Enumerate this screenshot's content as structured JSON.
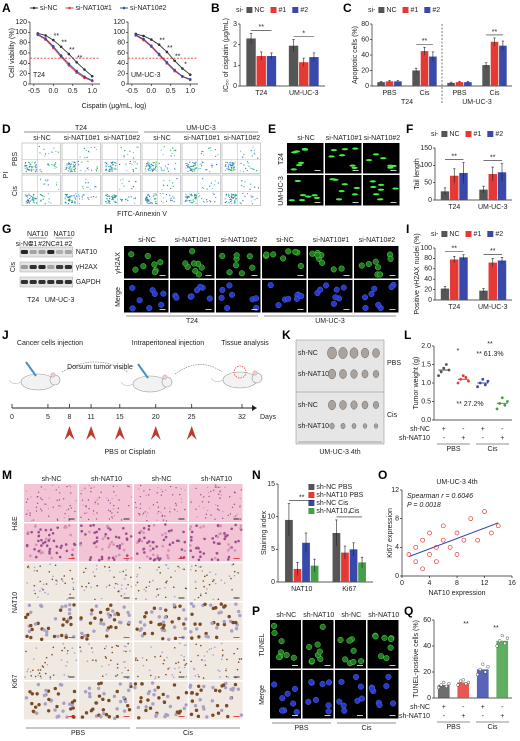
{
  "panels": {
    "A": {
      "letter": "A",
      "type": "line",
      "ylabel": "Cell viability (%)",
      "xlabel": "Cispatin (μg/mL, log)",
      "x": [
        -0.4,
        -0.2,
        0,
        0.2,
        0.4,
        0.6,
        0.8,
        1.0
      ],
      "xlim": [
        -0.6,
        1.2
      ],
      "xticks": [
        -0.5,
        {
          "value": 0,
          "label": "0.0"
        },
        0.5,
        {
          "value": 1,
          "label": "1.0"
        }
      ],
      "ylim": [
        0,
        120
      ],
      "yticks": [
        0,
        20,
        40,
        60,
        80,
        100,
        120
      ],
      "reference": 50,
      "series": [
        {
          "name": "si-NC",
          "color": "#333333"
        },
        {
          "name": "si-NAT10#1",
          "color": "#e53935"
        },
        {
          "name": "si-NAT10#2",
          "color": "#3949ab"
        }
      ],
      "charts": [
        {
          "name": "T24",
          "series": [
            {
              "values": [
                98,
                94,
                85,
                72,
                58,
                42,
                28,
                15
              ]
            },
            {
              "values": [
                95,
                86,
                70,
                52,
                36,
                22,
                12,
                6
              ]
            },
            {
              "values": [
                96,
                88,
                73,
                55,
                39,
                25,
                14,
                7
              ]
            }
          ],
          "stars": [
            null,
            null,
            "**",
            "**",
            "**",
            "**",
            null,
            null
          ]
        },
        {
          "name": "UM-UC-3",
          "series": [
            {
              "values": [
                97,
                93,
                86,
                76,
                62,
                45,
                30,
                18
              ]
            },
            {
              "values": [
                94,
                85,
                72,
                56,
                40,
                25,
                14,
                8
              ]
            },
            {
              "values": [
                95,
                87,
                74,
                58,
                42,
                27,
                15,
                9
              ]
            }
          ],
          "stars": [
            null,
            null,
            null,
            "**",
            "**",
            "**",
            "*",
            null
          ]
        }
      ]
    },
    "B": {
      "letter": "B",
      "type": "bar",
      "ylabel": "IC₅₀ of cisplatin (μg/mL)",
      "legend_title": "si-",
      "legend": "top",
      "categories": [
        "T24",
        "UM-UC-3"
      ],
      "ylim": [
        0,
        3
      ],
      "yticks": [
        0,
        1,
        2,
        3
      ],
      "stars": [
        "**",
        "*"
      ],
      "series": [
        {
          "name": "NC",
          "color": "#555555",
          "values": [
            2.3,
            1.95
          ],
          "errors": [
            0.25,
            0.3
          ]
        },
        {
          "name": "#1",
          "color": "#e53935",
          "values": [
            1.45,
            1.15
          ],
          "errors": [
            0.2,
            0.2
          ]
        },
        {
          "name": "#2",
          "color": "#3949ab",
          "values": [
            1.45,
            1.4
          ],
          "errors": [
            0.15,
            0.2
          ]
        }
      ]
    },
    "C": {
      "letter": "C",
      "type": "bar",
      "ylabel": "Apoptotic cells (%)",
      "legend_title": "si-",
      "legend": "top",
      "categories": [
        "PBS",
        "Cis",
        "PBS",
        "Cis"
      ],
      "groups": [
        "T24",
        "UM-UC-3"
      ],
      "ylim": [
        0,
        80
      ],
      "yticks": [
        0,
        20,
        40,
        60,
        80
      ],
      "stars": [
        null,
        "**",
        null,
        "**"
      ],
      "series": [
        {
          "name": "NC",
          "color": "#555555",
          "values": [
            5,
            20,
            4,
            27
          ],
          "errors": [
            1,
            3,
            1,
            3
          ]
        },
        {
          "name": "#1",
          "color": "#e53935",
          "values": [
            6,
            45,
            5,
            57
          ],
          "errors": [
            1,
            5,
            1,
            5
          ]
        },
        {
          "name": "#2",
          "color": "#3949ab",
          "values": [
            6,
            38,
            5,
            52
          ],
          "errors": [
            1,
            6,
            1,
            6
          ]
        }
      ]
    },
    "D": {
      "letter": "D",
      "type": "images",
      "columns": [
        "si-NC",
        "si-NAT10#1",
        "si-NAT10#2",
        "si-NC",
        "si-NAT10#1",
        "si-NAT10#2"
      ],
      "groups": [
        "T24",
        "UM-UC-3"
      ],
      "rows": [
        "PBS",
        "Cis"
      ],
      "row_styles": [
        "flow",
        "flow"
      ],
      "ylabel": "PI",
      "xlabel": "FITC-Annexin V"
    },
    "E": {
      "letter": "E",
      "type": "images",
      "columns": [
        "si-NC",
        "si-NAT10#1",
        "si-NAT10#2"
      ],
      "rows": [
        "T24",
        "UM-UC-3"
      ],
      "row_styles": [
        "comet",
        "comet"
      ]
    },
    "F": {
      "letter": "F",
      "type": "bar",
      "ylabel": "Tail length",
      "legend_title": "si-",
      "legend": "top",
      "categories": [
        "T24",
        "UM-UC-3"
      ],
      "ylim": [
        0,
        150
      ],
      "yticks": [
        0,
        50,
        100,
        150
      ],
      "stars": [
        "**",
        "**"
      ],
      "series": [
        {
          "name": "NC",
          "color": "#555555",
          "values": [
            25,
            30
          ],
          "errors": [
            10,
            10
          ]
        },
        {
          "name": "#1",
          "color": "#e53935",
          "values": [
            70,
            75
          ],
          "errors": [
            20,
            20
          ]
        },
        {
          "name": "#2",
          "color": "#3949ab",
          "values": [
            78,
            80
          ],
          "errors": [
            30,
            25
          ]
        }
      ]
    },
    "G": {
      "letter": "G",
      "type": "blot",
      "header": [
        "NAT10",
        "NAT10"
      ],
      "columns": [
        "si-NC",
        "#1",
        "#2",
        "NC",
        "#1",
        "#2"
      ],
      "bands": [
        "NAT10",
        "γH2AX",
        "GAPDH"
      ],
      "side": "Cis",
      "groups": [
        "T24",
        "UM-UC-3"
      ]
    },
    "H": {
      "letter": "H",
      "type": "images",
      "columns": [
        "si-NC",
        "si-NAT10#1",
        "si-NAT10#2",
        "si-NC",
        "si-NAT10#1",
        "si-NAT10#2"
      ],
      "groups": [
        "T24",
        "UM-UC-3"
      ],
      "rows": [
        "γH2AX",
        "Merge"
      ],
      "row_styles": [
        "green",
        "blue"
      ]
    },
    "I": {
      "letter": "I",
      "type": "bar",
      "ylabel": "Positive γH2AX nuclei (%)",
      "legend_title": "si-",
      "legend": "top",
      "categories": [
        "T24",
        "UM-UC-3"
      ],
      "ylim": [
        0,
        100
      ],
      "yticks": [
        0,
        20,
        40,
        60,
        80,
        100
      ],
      "stars": [
        "**",
        "**"
      ],
      "series": [
        {
          "name": "NC",
          "color": "#555555",
          "values": [
            22,
            18
          ],
          "errors": [
            4,
            4
          ]
        },
        {
          "name": "#1",
          "color": "#e53935",
          "values": [
            78,
            72
          ],
          "errors": [
            6,
            8
          ]
        },
        {
          "name": "#2",
          "color": "#3949ab",
          "values": [
            82,
            76
          ],
          "errors": [
            5,
            6
          ]
        }
      ]
    },
    "J": {
      "letter": "J",
      "type": "timeline",
      "steps": [
        "Cancer cells injection",
        "Dorsum tumor visible",
        "Intraperitoneal injection",
        "Tissue analysis"
      ],
      "days": [
        0,
        5,
        8,
        11,
        15,
        20,
        25,
        32
      ],
      "unit": "Days",
      "treatment": "PBS or Cisplatin",
      "treatment_days": [
        8,
        11,
        15,
        20,
        25
      ]
    },
    "K": {
      "letter": "K",
      "type": "photo",
      "rows": [
        "sh-NC",
        "sh-NAT10",
        "sh-NC",
        "sh-NAT10"
      ],
      "groups": [
        "PBS",
        "Cis"
      ],
      "caption": "UM-UC-3 4th"
    },
    "L": {
      "letter": "L",
      "type": "dots",
      "bars": false,
      "ylabel": "Tumor weight (g)",
      "ylim": [
        0,
        2
      ],
      "yticks": [
        {
          "value": 0,
          "label": "0.0"
        },
        0.5,
        {
          "value": 1,
          "label": "1.0"
        },
        1.5,
        {
          "value": 2,
          "label": "2.0"
        }
      ],
      "values": [
        1.35,
        1.1,
        1.0,
        0.45
      ],
      "colors": [
        "#555555",
        "#e53935",
        "#3949ab",
        "#43a047"
      ],
      "points": [
        [
          1.2,
          1.3,
          1.4,
          1.5,
          1.35
        ],
        [
          1.0,
          1.1,
          1.2,
          1.15,
          1.05
        ],
        [
          0.9,
          1.0,
          1.1,
          0.95,
          1.05
        ],
        [
          0.3,
          0.45,
          0.6,
          0.4,
          0.5
        ]
      ],
      "rows": [
        {
          "label": "sh-NC",
          "signs": [
            "+",
            "-",
            "+",
            "-"
          ]
        },
        {
          "label": "sh-NAT10",
          "signs": [
            "-",
            "+",
            "-",
            "+"
          ]
        }
      ],
      "groups": [
        "PBS",
        "Cis"
      ],
      "notes": [
        "*",
        "**",
        "** 61.3%",
        "** 27.2%"
      ]
    },
    "M": {
      "letter": "M",
      "type": "images",
      "columns": [
        "sh-NC",
        "sh-NAT10",
        "sh-NC",
        "sh-NAT10"
      ],
      "groups": [
        "PBS",
        "Cis"
      ],
      "rows": [
        "H&E",
        "NAT10",
        "Ki67"
      ],
      "row_styles": [
        "he",
        "ihc",
        "ihc"
      ],
      "subrows": 2
    },
    "N": {
      "letter": "N",
      "type": "bar",
      "ylabel": "Staining index",
      "legend": "inside",
      "categories": [
        "NAT10",
        "Ki67"
      ],
      "ylim": [
        0,
        15
      ],
      "yticks": [
        0,
        5,
        10,
        15
      ],
      "stars": [
        "**",
        "*"
      ],
      "series": [
        {
          "name": "sh-NC PBS",
          "color": "#555555",
          "values": [
            9.5,
            7.5
          ],
          "errors": [
            2.5,
            2
          ]
        },
        {
          "name": "sh-NAT10 PBS",
          "color": "#e53935",
          "values": [
            2,
            4.5
          ],
          "errors": [
            1,
            1
          ]
        },
        {
          "name": "sh-NC Cis",
          "color": "#3949ab",
          "values": [
            6,
            5
          ],
          "errors": [
            1.5,
            1
          ]
        },
        {
          "name": "sh-NAT10 Cis",
          "color": "#43a047",
          "values": [
            2.5,
            3
          ],
          "errors": [
            1,
            0.8
          ]
        }
      ]
    },
    "O": {
      "letter": "O",
      "type": "scatter",
      "title": "UM-UC-3 4th",
      "stats": [
        "Spearman r = 0.6046",
        "P = 0.0018"
      ],
      "xlabel": "NAT10 expression",
      "ylabel": "Ki67 expression",
      "xlim": [
        0,
        16
      ],
      "xticks": [
        0,
        4,
        8,
        12,
        16
      ],
      "ylim": [
        0,
        12
      ],
      "yticks": [
        0,
        4,
        8,
        12
      ],
      "color": "#e53935",
      "line_color": "#3949ab",
      "x": [
        1,
        2,
        2,
        3,
        3,
        4,
        4,
        5,
        5,
        6,
        6,
        7,
        8,
        8,
        9,
        10,
        11,
        12,
        13,
        14
      ],
      "y": [
        3,
        2,
        4,
        1,
        5,
        3,
        6,
        2,
        4,
        5,
        7,
        4,
        6,
        3,
        5,
        8,
        5,
        9,
        6,
        7
      ]
    },
    "P": {
      "letter": "P",
      "type": "images",
      "columns": [
        "sh-NC",
        "sh-NAT10",
        "sh-NC",
        "sh-NAT10"
      ],
      "groups": [
        "PBS",
        "Cis"
      ],
      "rows": [
        "TUNEL",
        "Merge"
      ],
      "row_styles": [
        "green",
        "blue"
      ]
    },
    "Q": {
      "letter": "Q",
      "type": "dots",
      "bars": true,
      "ylabel": "TUNEL-positive cells (%)",
      "ylim": [
        0,
        60
      ],
      "yticks": [
        0,
        20,
        40,
        60
      ],
      "values": [
        10,
        12,
        22,
        44
      ],
      "colors": [
        "#555555",
        "#e53935",
        "#3949ab",
        "#43a047"
      ],
      "points": [
        [
          8,
          10,
          12,
          9,
          11
        ],
        [
          10,
          13,
          14,
          11,
          12
        ],
        [
          18,
          22,
          26,
          20,
          24
        ],
        [
          40,
          44,
          48,
          42,
          46
        ]
      ],
      "rows": [
        {
          "label": "sh-NC",
          "signs": [
            "+",
            "-",
            "+",
            "-"
          ]
        },
        {
          "label": "sh-NAT10",
          "signs": [
            "-",
            "+",
            "-",
            "+"
          ]
        }
      ],
      "groups": [
        "PBS",
        "Cis"
      ],
      "notes": [
        "**",
        "**"
      ]
    }
  }
}
